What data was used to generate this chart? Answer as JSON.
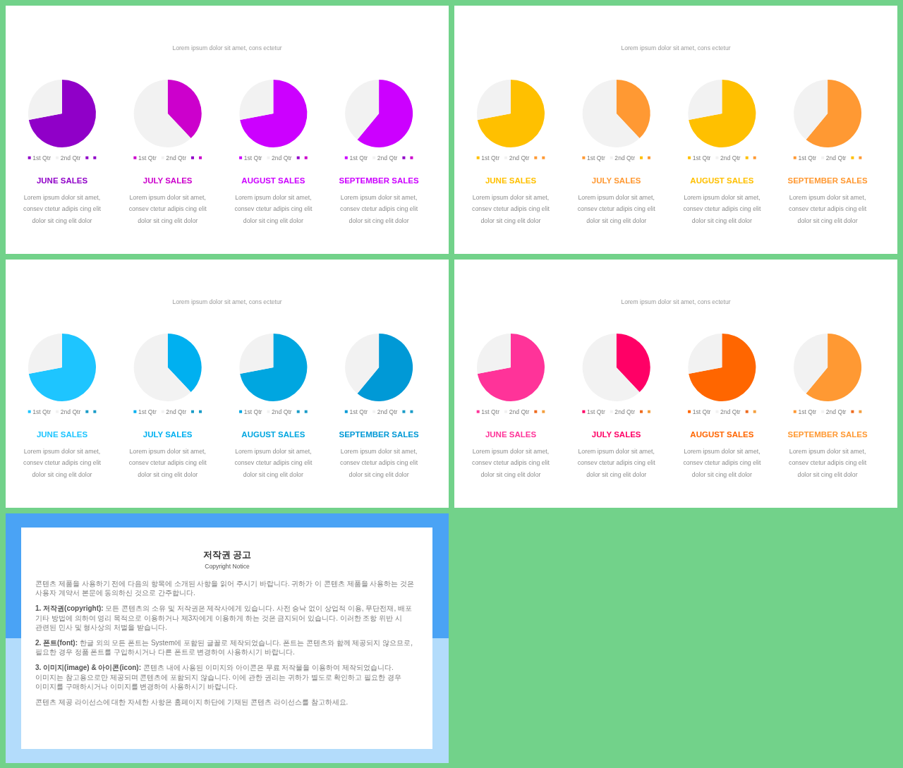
{
  "chart_data": [
    {
      "type": "other",
      "subtitle": "Lorem ipsum dolor sit amet, cons ectetur"
    },
    {
      "type": "pie",
      "title": "JUNE SALES",
      "categories": [
        "1st Qtr",
        "2nd Qtr",
        null,
        null
      ],
      "values": [
        72,
        28,
        0,
        0
      ],
      "colors": [
        "#9000c8",
        "#f2f2f2",
        "#9000c8",
        "#9000c8"
      ],
      "legend": "bottom",
      "annotations": [
        "Lorem ipsum dolor sit amet, consev ctetur adipis cing elit dolor sit cing elit dolor"
      ]
    },
    {
      "type": "pie",
      "title": "JULY SALES",
      "categories": [
        "1st Qtr",
        "2nd Qtr",
        null,
        null
      ],
      "values": [
        38,
        62,
        0,
        0
      ],
      "colors": [
        "#cc00cc",
        "#f2f2f2",
        "#9000c8",
        "#cc00cc"
      ],
      "legend": "bottom",
      "annotations": [
        "Lorem ipsum dolor sit amet, consev ctetur adipis cing elit dolor sit cing elit dolor"
      ]
    },
    {
      "type": "pie",
      "title": "AUGUST SALES",
      "categories": [
        "1st Qtr",
        "2nd Qtr",
        null,
        null
      ],
      "values": [
        72,
        28,
        0,
        0
      ],
      "colors": [
        "#cc00ff",
        "#f2f2f2",
        "#9000c8",
        "#cc00cc"
      ],
      "legend": "bottom",
      "annotations": [
        "Lorem ipsum dolor sit amet, consev ctetur adipis cing elit dolor sit cing elit dolor"
      ]
    },
    {
      "type": "pie",
      "title": "SEPTEMBER SALES",
      "categories": [
        "1st Qtr",
        "2nd Qtr",
        null,
        null
      ],
      "values": [
        61,
        39,
        0,
        0
      ],
      "colors": [
        "#cc00ff",
        "#f2f2f2",
        "#9000c8",
        "#cc00cc"
      ],
      "legend": "bottom",
      "annotations": [
        "Lorem ipsum dolor sit amet, consev ctetur adipis cing elit dolor sit cing elit dolor"
      ]
    },
    {
      "type": "other",
      "subtitle": "Lorem ipsum dolor sit amet, cons ectetur"
    },
    {
      "type": "pie",
      "title": "JUNE SALES",
      "categories": [
        "1st Qtr",
        "2nd Qtr",
        null,
        null
      ],
      "values": [
        72,
        28,
        0,
        0
      ],
      "colors": [
        "#ffc000",
        "#f2f2f2",
        "#ff9933",
        "#ff9933"
      ],
      "legend": "bottom",
      "annotations": [
        "Lorem ipsum dolor sit amet, consev ctetur adipis cing elit dolor sit cing elit dolor"
      ]
    },
    {
      "type": "pie",
      "title": "JULY SALES",
      "categories": [
        "1st Qtr",
        "2nd Qtr",
        null,
        null
      ],
      "values": [
        38,
        62,
        0,
        0
      ],
      "colors": [
        "#ff9933",
        "#f2f2f2",
        "#ffc000",
        "#ff9933"
      ],
      "legend": "bottom",
      "annotations": [
        "Lorem ipsum dolor sit amet, consev ctetur adipis cing elit dolor sit cing elit dolor"
      ]
    },
    {
      "type": "pie",
      "title": "AUGUST SALES",
      "categories": [
        "1st Qtr",
        "2nd Qtr",
        null,
        null
      ],
      "values": [
        72,
        28,
        0,
        0
      ],
      "colors": [
        "#ffc000",
        "#f2f2f2",
        "#ffc000",
        "#ff9933"
      ],
      "legend": "bottom",
      "annotations": [
        "Lorem ipsum dolor sit amet, consev ctetur adipis cing elit dolor sit cing elit dolor"
      ]
    },
    {
      "type": "pie",
      "title": "SEPTEMBER SALES",
      "categories": [
        "1st Qtr",
        "2nd Qtr",
        null,
        null
      ],
      "values": [
        61,
        39,
        0,
        0
      ],
      "colors": [
        "#ff9933",
        "#f2f2f2",
        "#ffc000",
        "#ff9933"
      ],
      "legend": "bottom",
      "annotations": [
        "Lorem ipsum dolor sit amet, consev ctetur adipis cing elit dolor sit cing elit dolor"
      ]
    },
    {
      "type": "other",
      "subtitle": "Lorem ipsum dolor sit amet, cons ectetur"
    },
    {
      "type": "pie",
      "title": "JUNE SALES",
      "categories": [
        "1st Qtr",
        "2nd Qtr",
        null,
        null
      ],
      "values": [
        72,
        28,
        0,
        0
      ],
      "colors": [
        "#1ec5ff",
        "#f2f2f2",
        "#1a9cc8",
        "#1a9cc8"
      ],
      "legend": "bottom",
      "annotations": [
        "Lorem ipsum dolor sit amet, consev ctetur adipis cing elit dolor sit cing elit dolor"
      ]
    },
    {
      "type": "pie",
      "title": "JULY SALES",
      "categories": [
        "1st Qtr",
        "2nd Qtr",
        null,
        null
      ],
      "values": [
        38,
        62,
        0,
        0
      ],
      "colors": [
        "#00b0f0",
        "#f2f2f2",
        "#1a9cc8",
        "#1a9cc8"
      ],
      "legend": "bottom",
      "annotations": [
        "Lorem ipsum dolor sit amet, consev ctetur adipis cing elit dolor sit cing elit dolor"
      ]
    },
    {
      "type": "pie",
      "title": "AUGUST SALES",
      "categories": [
        "1st Qtr",
        "2nd Qtr",
        null,
        null
      ],
      "values": [
        72,
        28,
        0,
        0
      ],
      "colors": [
        "#00a6e0",
        "#f2f2f2",
        "#1a9cc8",
        "#1a9cc8"
      ],
      "legend": "bottom",
      "annotations": [
        "Lorem ipsum dolor sit amet, consev ctetur adipis cing elit dolor sit cing elit dolor"
      ]
    },
    {
      "type": "pie",
      "title": "SEPTEMBER SALES",
      "categories": [
        "1st Qtr",
        "2nd Qtr",
        null,
        null
      ],
      "values": [
        61,
        39,
        0,
        0
      ],
      "colors": [
        "#0099d6",
        "#f2f2f2",
        "#1a9cc8",
        "#1a9cc8"
      ],
      "legend": "bottom",
      "annotations": [
        "Lorem ipsum dolor sit amet, consev ctetur adipis cing elit dolor sit cing elit dolor"
      ]
    },
    {
      "type": "other",
      "subtitle": "Lorem ipsum dolor sit amet, cons ectetur"
    },
    {
      "type": "pie",
      "title": "JUNE SALES",
      "categories": [
        "1st Qtr",
        "2nd Qtr",
        null,
        null
      ],
      "values": [
        72,
        28,
        0,
        0
      ],
      "colors": [
        "#ff3399",
        "#f2f2f2",
        "#ee6a1e",
        "#f4a040"
      ],
      "legend": "bottom",
      "annotations": [
        "Lorem ipsum dolor sit amet, consev ctetur adipis cing elit dolor sit cing elit dolor"
      ]
    },
    {
      "type": "pie",
      "title": "JULY SALES",
      "categories": [
        "1st Qtr",
        "2nd Qtr",
        null,
        null
      ],
      "values": [
        38,
        62,
        0,
        0
      ],
      "colors": [
        "#ff0066",
        "#f2f2f2",
        "#ee6a1e",
        "#f4a040"
      ],
      "legend": "bottom",
      "annotations": [
        "Lorem ipsum dolor sit amet, consev ctetur adipis cing elit dolor sit cing elit dolor"
      ]
    },
    {
      "type": "pie",
      "title": "AUGUST SALES",
      "categories": [
        "1st Qtr",
        "2nd Qtr",
        null,
        null
      ],
      "values": [
        72,
        28,
        0,
        0
      ],
      "colors": [
        "#ff6600",
        "#f2f2f2",
        "#ee6a1e",
        "#f4a040"
      ],
      "legend": "bottom",
      "annotations": [
        "Lorem ipsum dolor sit amet, consev ctetur adipis cing elit dolor sit cing elit dolor"
      ]
    },
    {
      "type": "pie",
      "title": "SEPTEMBER SALES",
      "categories": [
        "1st Qtr",
        "2nd Qtr",
        null,
        null
      ],
      "values": [
        61,
        39,
        0,
        0
      ],
      "colors": [
        "#ff9933",
        "#f2f2f2",
        "#ee6a1e",
        "#f4a040"
      ],
      "legend": "bottom",
      "annotations": [
        "Lorem ipsum dolor sit amet, consev ctetur adipis cing elit dolor sit cing elit dolor"
      ]
    },
    {
      "type": "other",
      "title": "저작권 공고",
      "subtitle": "Copyright Notice",
      "annotations": [
        "콘텐츠 제품을 사용하기 전에 다음의 항목에 소개된 사항을 읽어 주시기 바랍니다. 귀하가 이 콘텐츠 제품을 사용하는 것은 사용자 계약서 본문에 동의하신 것으로 간주합니다.",
        "1. 저작권(copyright): 모든 콘텐츠의 소유 및 저작권은 제작사에게 있습니다. 사전 승낙 없이 상업적 이용, 무단전재, 배포 기타 방법에 의하여 영리 목적으로 이용하거나 제3자에게 이용하게 하는 것은 금지되어 있습니다. 이러한 조항 위반 시 관련된 민사 및 형사상의 처벌을 받습니다.",
        "2. 폰트(font): 한글 외의 모든 폰트는 System에 포함된 글꼴로 제작되었습니다. 폰트는 콘텐츠와 함께 제공되지 않으므로, 필요한 경우 정품 폰트를 구입하시거나 다른 폰트로 변경하여 사용하시기 바랍니다.",
        "3. 이미지(image) & 아이콘(icon): 콘텐츠 내에 사용된 이미지와 아이콘은 무료 저작물을 이용하여 제작되었습니다. 이미지는 참고용으로만 제공되며 콘텐츠에 포함되지 않습니다. 이에 관한 권리는 귀하가 별도로 확인하고 필요한 경우 이미지를 구매하시거나 이미지를 변경하여 사용하시기 바랍니다.",
        "콘텐츠 제공 라이선스에 대한 자세한 사항은 홈페이지 하단에 기재된 콘텐츠 라이선스를 참고하세요."
      ]
    }
  ]
}
